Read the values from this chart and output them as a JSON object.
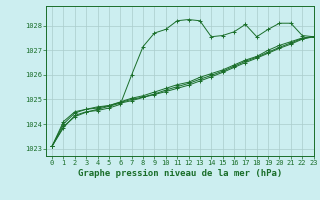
{
  "title": "Graphe pression niveau de la mer (hPa)",
  "background_color": "#cceef0",
  "grid_color": "#aacccc",
  "line_color": "#1a6e2a",
  "xlim": [
    -0.5,
    23
  ],
  "ylim": [
    1022.7,
    1028.8
  ],
  "yticks": [
    1023,
    1024,
    1025,
    1026,
    1027,
    1028
  ],
  "xticks": [
    0,
    1,
    2,
    3,
    4,
    5,
    6,
    7,
    8,
    9,
    10,
    11,
    12,
    13,
    14,
    15,
    16,
    17,
    18,
    19,
    20,
    21,
    22,
    23
  ],
  "series": [
    {
      "x": [
        0,
        1,
        2,
        3,
        4,
        5,
        6,
        7,
        8,
        9,
        10,
        11,
        12,
        13,
        14,
        15,
        16,
        17,
        18,
        19,
        20,
        21,
        22,
        23
      ],
      "y": [
        1023.1,
        1023.85,
        1024.35,
        1024.5,
        1024.55,
        1024.65,
        1024.8,
        1026.0,
        1027.15,
        1027.7,
        1027.85,
        1028.2,
        1028.25,
        1028.2,
        1027.55,
        1027.6,
        1027.75,
        1028.05,
        1027.55,
        1027.85,
        1028.1,
        1028.1,
        1027.6,
        1027.55
      ]
    },
    {
      "x": [
        0,
        1,
        2,
        3,
        4,
        5,
        6,
        7,
        8,
        9,
        10,
        11,
        12,
        13,
        14,
        15,
        16,
        17,
        18,
        19,
        20,
        21,
        22,
        23
      ],
      "y": [
        1023.1,
        1024.1,
        1024.5,
        1024.6,
        1024.7,
        1024.75,
        1024.9,
        1025.05,
        1025.15,
        1025.3,
        1025.45,
        1025.6,
        1025.7,
        1025.9,
        1026.05,
        1026.2,
        1026.4,
        1026.6,
        1026.75,
        1027.0,
        1027.2,
        1027.35,
        1027.5,
        1027.55
      ]
    },
    {
      "x": [
        0,
        1,
        2,
        3,
        4,
        5,
        6,
        7,
        8,
        9,
        10,
        11,
        12,
        13,
        14,
        15,
        16,
        17,
        18,
        19,
        20,
        21,
        22,
        23
      ],
      "y": [
        1023.1,
        1024.0,
        1024.45,
        1024.6,
        1024.65,
        1024.75,
        1024.88,
        1025.0,
        1025.1,
        1025.22,
        1025.38,
        1025.52,
        1025.65,
        1025.82,
        1025.98,
        1026.15,
        1026.35,
        1026.55,
        1026.72,
        1026.92,
        1027.12,
        1027.3,
        1027.48,
        1027.55
      ]
    },
    {
      "x": [
        0,
        1,
        2,
        3,
        4,
        5,
        6,
        7,
        8,
        9,
        10,
        11,
        12,
        13,
        14,
        15,
        16,
        17,
        18,
        19,
        20,
        21,
        22,
        23
      ],
      "y": [
        1023.1,
        1023.9,
        1024.3,
        1024.48,
        1024.6,
        1024.72,
        1024.85,
        1024.95,
        1025.08,
        1025.2,
        1025.32,
        1025.45,
        1025.58,
        1025.75,
        1025.92,
        1026.1,
        1026.3,
        1026.5,
        1026.68,
        1026.88,
        1027.08,
        1027.25,
        1027.45,
        1027.55
      ]
    }
  ],
  "title_fontsize": 6.5,
  "tick_fontsize": 5.0
}
